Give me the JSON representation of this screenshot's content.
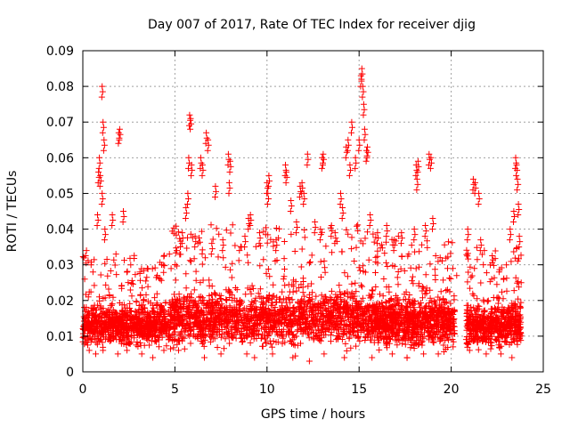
{
  "chart_data": {
    "type": "scatter",
    "title": "Day 007 of 2017, Rate Of TEC Index for receiver djig",
    "xlabel": "GPS time / hours",
    "ylabel": "ROTI / TECUs",
    "xlim": [
      0,
      25
    ],
    "ylim": [
      0,
      0.09
    ],
    "x_ticks": [
      0,
      5,
      10,
      15,
      20,
      25
    ],
    "x_tick_labels": [
      "0",
      "5",
      "10",
      "15",
      "20",
      "25"
    ],
    "y_ticks": [
      0,
      0.01,
      0.02,
      0.03,
      0.04,
      0.05,
      0.06,
      0.07,
      0.08,
      0.09
    ],
    "y_tick_labels": [
      "0",
      "0.01",
      "0.02",
      "0.03",
      "0.04",
      "0.05",
      "0.06",
      "0.07",
      "0.08",
      "0.09"
    ],
    "grid": true,
    "marker": "+",
    "marker_color": "#ff0000",
    "series": [
      {
        "name": "ROTI",
        "points": [
          [
            0.1,
            0.026
          ],
          [
            0.2,
            0.034
          ],
          [
            0.3,
            0.021
          ],
          [
            0.45,
            0.03
          ],
          [
            0.55,
            0.028
          ],
          [
            0.8,
            0.044
          ],
          [
            0.85,
            0.056
          ],
          [
            0.9,
            0.06
          ],
          [
            0.95,
            0.055
          ],
          [
            1.05,
            0.08
          ],
          [
            1.1,
            0.07
          ],
          [
            1.15,
            0.065
          ],
          [
            1.05,
            0.05
          ],
          [
            1.2,
            0.04
          ],
          [
            1.6,
            0.044
          ],
          [
            1.8,
            0.033
          ],
          [
            1.95,
            0.067
          ],
          [
            2.0,
            0.068
          ],
          [
            2.2,
            0.045
          ],
          [
            2.6,
            0.03
          ],
          [
            3.1,
            0.028
          ],
          [
            3.5,
            0.029
          ],
          [
            4.2,
            0.026
          ],
          [
            4.7,
            0.033
          ],
          [
            5.1,
            0.034
          ],
          [
            5.4,
            0.039
          ],
          [
            5.6,
            0.046
          ],
          [
            5.7,
            0.05
          ],
          [
            5.75,
            0.06
          ],
          [
            5.8,
            0.072
          ],
          [
            5.85,
            0.071
          ],
          [
            5.9,
            0.058
          ],
          [
            6.1,
            0.038
          ],
          [
            6.4,
            0.06
          ],
          [
            6.5,
            0.058
          ],
          [
            6.7,
            0.067
          ],
          [
            6.8,
            0.065
          ],
          [
            7.0,
            0.036
          ],
          [
            7.2,
            0.052
          ],
          [
            7.6,
            0.037
          ],
          [
            7.9,
            0.061
          ],
          [
            8.0,
            0.059
          ],
          [
            7.95,
            0.053
          ],
          [
            8.5,
            0.034
          ],
          [
            8.8,
            0.038
          ],
          [
            9.0,
            0.043
          ],
          [
            9.1,
            0.044
          ],
          [
            9.6,
            0.039
          ],
          [
            10.0,
            0.053
          ],
          [
            10.05,
            0.05
          ],
          [
            10.1,
            0.055
          ],
          [
            10.5,
            0.037
          ],
          [
            11.0,
            0.058
          ],
          [
            11.05,
            0.056
          ],
          [
            11.3,
            0.048
          ],
          [
            11.6,
            0.042
          ],
          [
            11.8,
            0.052
          ],
          [
            11.9,
            0.053
          ],
          [
            12.0,
            0.05
          ],
          [
            12.2,
            0.061
          ],
          [
            12.6,
            0.042
          ],
          [
            12.9,
            0.04
          ],
          [
            13.0,
            0.06
          ],
          [
            13.05,
            0.061
          ],
          [
            13.5,
            0.041
          ],
          [
            13.7,
            0.039
          ],
          [
            14.0,
            0.05
          ],
          [
            14.1,
            0.046
          ],
          [
            14.3,
            0.063
          ],
          [
            14.4,
            0.065
          ],
          [
            14.5,
            0.058
          ],
          [
            14.6,
            0.07
          ],
          [
            14.8,
            0.06
          ],
          [
            15.0,
            0.065
          ],
          [
            15.1,
            0.083
          ],
          [
            15.15,
            0.085
          ],
          [
            15.2,
            0.08
          ],
          [
            15.25,
            0.075
          ],
          [
            15.3,
            0.068
          ],
          [
            15.4,
            0.062
          ],
          [
            15.45,
            0.063
          ],
          [
            15.6,
            0.044
          ],
          [
            16.0,
            0.039
          ],
          [
            16.5,
            0.041
          ],
          [
            16.9,
            0.037
          ],
          [
            17.3,
            0.039
          ],
          [
            17.7,
            0.033
          ],
          [
            18.0,
            0.04
          ],
          [
            18.1,
            0.058
          ],
          [
            18.15,
            0.054
          ],
          [
            18.2,
            0.059
          ],
          [
            18.6,
            0.041
          ],
          [
            18.8,
            0.061
          ],
          [
            18.9,
            0.06
          ],
          [
            19.0,
            0.043
          ],
          [
            19.4,
            0.032
          ],
          [
            19.8,
            0.029
          ],
          [
            20.3,
            0.027
          ],
          [
            20.9,
            0.04
          ],
          [
            21.2,
            0.054
          ],
          [
            21.3,
            0.053
          ],
          [
            21.5,
            0.05
          ],
          [
            21.6,
            0.037
          ],
          [
            21.8,
            0.034
          ],
          [
            22.2,
            0.026
          ],
          [
            22.6,
            0.028
          ],
          [
            23.0,
            0.03
          ],
          [
            23.2,
            0.04
          ],
          [
            23.4,
            0.045
          ],
          [
            23.5,
            0.06
          ],
          [
            23.55,
            0.058
          ],
          [
            23.6,
            0.054
          ],
          [
            23.65,
            0.047
          ],
          [
            23.7,
            0.038
          ],
          [
            23.8,
            0.025
          ],
          [
            0.35,
            0.006
          ],
          [
            0.7,
            0.005
          ],
          [
            1.1,
            0.006
          ],
          [
            1.9,
            0.005
          ],
          [
            2.4,
            0.006
          ],
          [
            3.2,
            0.005
          ],
          [
            3.8,
            0.004
          ],
          [
            4.4,
            0.006
          ],
          [
            5.2,
            0.006
          ],
          [
            6.6,
            0.004
          ],
          [
            7.5,
            0.005
          ],
          [
            8.9,
            0.005
          ],
          [
            10.3,
            0.005
          ],
          [
            11.4,
            0.004
          ],
          [
            12.3,
            0.003
          ],
          [
            13.1,
            0.005
          ],
          [
            14.2,
            0.004
          ],
          [
            15.7,
            0.004
          ],
          [
            16.8,
            0.005
          ],
          [
            17.6,
            0.004
          ],
          [
            18.5,
            0.005
          ],
          [
            19.3,
            0.005
          ],
          [
            20.1,
            0.007
          ],
          [
            21.0,
            0.006
          ],
          [
            21.9,
            0.005
          ],
          [
            22.7,
            0.005
          ],
          [
            23.3,
            0.004
          ]
        ]
      }
    ],
    "dense_band": {
      "segments": [
        {
          "x_range": [
            0.0,
            4.8
          ],
          "y_center": 0.013,
          "y_spread": 0.009,
          "count": 900
        },
        {
          "x_range": [
            4.8,
            15.8
          ],
          "y_center": 0.015,
          "y_spread": 0.012,
          "count": 2400
        },
        {
          "x_range": [
            15.8,
            20.2
          ],
          "y_center": 0.014,
          "y_spread": 0.011,
          "count": 900
        },
        {
          "x_range": [
            20.8,
            23.8
          ],
          "y_center": 0.013,
          "y_spread": 0.01,
          "count": 600
        }
      ],
      "gap_x_range": [
        20.2,
        20.8
      ]
    }
  }
}
